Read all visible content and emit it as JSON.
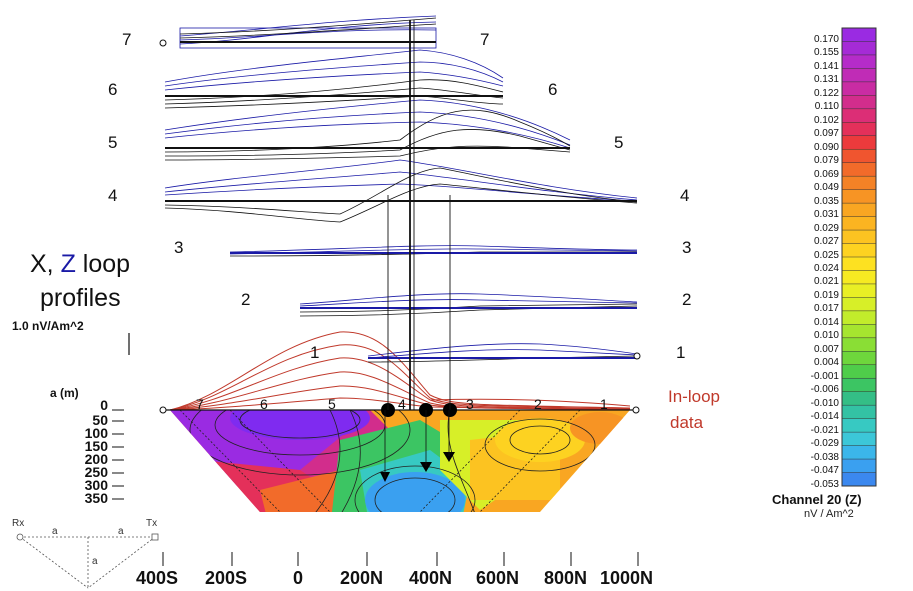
{
  "titles": {
    "line1_x": "X, ",
    "line1_z": "Z",
    "line1_rest": " loop",
    "line2": "profiles"
  },
  "scale_label": "1.0 nV/Am^2",
  "inloop": {
    "line1": "In-loop",
    "line2": "data"
  },
  "depth_axis": {
    "label": "a (m)",
    "ticks": [
      "0",
      "50",
      "100",
      "150",
      "200",
      "250",
      "300",
      "350"
    ]
  },
  "x_axis": {
    "ticks": [
      "400S",
      "200S",
      "0",
      "200N",
      "400N",
      "600N",
      "800N",
      "1000N"
    ]
  },
  "profiles": [
    {
      "left": "7",
      "right": "7"
    },
    {
      "left": "6",
      "right": "6"
    },
    {
      "left": "5",
      "right": "5"
    },
    {
      "left": "4",
      "right": "4"
    },
    {
      "left": "3",
      "right": "3"
    },
    {
      "left": "2",
      "right": "2"
    },
    {
      "left": "1",
      "right": "1"
    }
  ],
  "pseudosection_labels": [
    "7",
    "6",
    "5",
    "4",
    "3",
    "2",
    "1"
  ],
  "colorbar": {
    "title": "Channel 20 (Z)",
    "unit": "nV / Am^2",
    "labels": [
      "0.170",
      "0.155",
      "0.141",
      "0.131",
      "0.122",
      "0.110",
      "0.102",
      "0.097",
      "0.090",
      "0.079",
      "0.069",
      "0.049",
      "0.035",
      "0.031",
      "0.029",
      "0.027",
      "0.025",
      "0.024",
      "0.021",
      "0.019",
      "0.017",
      "0.014",
      "0.010",
      "0.007",
      "0.004",
      "-0.001",
      "-0.006",
      "-0.010",
      "-0.014",
      "-0.021",
      "-0.029",
      "-0.038",
      "-0.047",
      "-0.053"
    ],
    "colors": [
      "#9a2be2",
      "#a52bd6",
      "#b52cc9",
      "#c02cb6",
      "#c92ca3",
      "#d22d8c",
      "#dc2e76",
      "#e4305a",
      "#ec3a3c",
      "#f0552f",
      "#f26b2a",
      "#f48226",
      "#f79424",
      "#f9a622",
      "#fbb421",
      "#fcc321",
      "#fdd221",
      "#fde121",
      "#f6ea22",
      "#e9ef25",
      "#d7ef28",
      "#c2ec2b",
      "#a6e52f",
      "#8ade35",
      "#6ed63c",
      "#4fcd4a",
      "#3cc563",
      "#34be86",
      "#33c2a4",
      "#37c9c2",
      "#3cc7d8",
      "#3bb6ea",
      "#3aa0f0",
      "#3b88ef"
    ]
  },
  "geometry_labels": {
    "rx": "Rx",
    "tx": "Tx",
    "a1": "a",
    "a2": "a",
    "a3": "a"
  }
}
